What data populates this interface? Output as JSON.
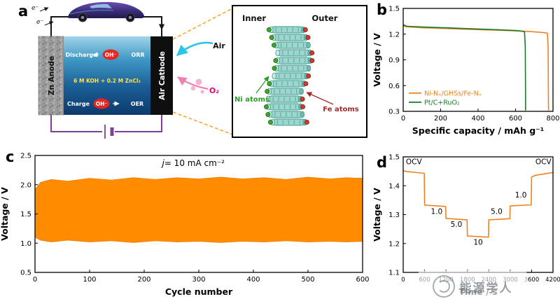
{
  "panel_labels": {
    "a": "a",
    "b": "b",
    "c": "c",
    "d": "d"
  },
  "watermark": {
    "text": "能源学人"
  },
  "panel_a": {
    "electron": "e⁻",
    "anode": "Zn Anode",
    "cathode": "Air Cathode",
    "discharge": "Discharge",
    "orr": "ORR",
    "charge": "Charge",
    "oer": "OER",
    "oh": "OH⁻",
    "electrolyte": "6 M KOH + 0.2 M ZnCl₂",
    "air": "Air",
    "o2": "O₂",
    "inset": {
      "inner": "Inner",
      "outer": "Outer",
      "ni": "Ni atoms",
      "fe": "Fe atoms"
    }
  },
  "chart_data": [
    {
      "panel": "b",
      "type": "line",
      "title": "",
      "xlabel": "Specific capacity / mAh g⁻¹",
      "ylabel": "Voltage / V",
      "xlim": [
        0,
        800
      ],
      "ylim": [
        0.3,
        1.5
      ],
      "xticks": [
        0,
        200,
        400,
        600,
        800
      ],
      "xtick_labels": [
        "0",
        "200",
        "400",
        "600",
        "800"
      ],
      "yticks": [
        0.3,
        0.6,
        0.9,
        1.2,
        1.5
      ],
      "ytick_labels": [
        "0.3",
        "0.6",
        "0.9",
        "1.2",
        "1.5"
      ],
      "legend": [
        {
          "label": "Ni-Nₓ/GHSs/Fe-Nₓ",
          "color": "#f0821e"
        },
        {
          "label": "Pt/C+RuO₂",
          "color": "#1d7a2c"
        }
      ],
      "series": [
        {
          "name": "Ni-Nx-GHSs-Fe-Nx",
          "color": "#f0821e",
          "points": [
            [
              0,
              1.295
            ],
            [
              20,
              1.285
            ],
            [
              100,
              1.275
            ],
            [
              200,
              1.268
            ],
            [
              300,
              1.26
            ],
            [
              400,
              1.253
            ],
            [
              500,
              1.246
            ],
            [
              600,
              1.238
            ],
            [
              680,
              1.23
            ],
            [
              730,
              1.222
            ],
            [
              762,
              1.215
            ],
            [
              770,
              1.21
            ],
            [
              774,
              1.05
            ],
            [
              776,
              0.31
            ]
          ]
        },
        {
          "name": "PtC-RuO2",
          "color": "#1d7a2c",
          "points": [
            [
              0,
              1.31
            ],
            [
              20,
              1.292
            ],
            [
              100,
              1.283
            ],
            [
              200,
              1.276
            ],
            [
              300,
              1.268
            ],
            [
              400,
              1.26
            ],
            [
              500,
              1.252
            ],
            [
              600,
              1.242
            ],
            [
              630,
              1.236
            ],
            [
              648,
              1.228
            ],
            [
              652,
              1.05
            ],
            [
              654,
              0.31
            ]
          ]
        }
      ]
    },
    {
      "panel": "c",
      "type": "band",
      "title": "",
      "xlabel": "Cycle number",
      "ylabel": "Voltage / V",
      "xlim": [
        0,
        600
      ],
      "ylim": [
        0.5,
        2.5
      ],
      "xticks": [
        0,
        100,
        200,
        300,
        400,
        500,
        600
      ],
      "xtick_labels": [
        "0",
        "100",
        "200",
        "300",
        "400",
        "500",
        "600"
      ],
      "yticks": [
        0.5,
        1.0,
        1.5,
        2.0,
        2.5
      ],
      "ytick_labels": [
        "0.5",
        "1.0",
        "1.5",
        "2.0",
        "2.5"
      ],
      "annotation": {
        "x": 290,
        "y": 2.32,
        "fs": 12,
        "parts": [
          {
            "t": "j",
            "italic": true
          },
          {
            "t": "= 10 mA cm⁻²"
          }
        ]
      },
      "band": {
        "color": "#ff8c00",
        "charge_voltage_approx": 2.1,
        "discharge_voltage_approx": 1.03,
        "x": [
          0,
          10,
          30,
          60,
          100,
          140,
          180,
          220,
          260,
          300,
          340,
          380,
          420,
          460,
          500,
          540,
          570,
          600
        ],
        "top": [
          1.92,
          2.04,
          2.09,
          2.06,
          2.11,
          2.08,
          2.12,
          2.09,
          2.12,
          2.1,
          2.13,
          2.1,
          2.12,
          2.09,
          2.13,
          2.1,
          2.12,
          2.11
        ],
        "bottom": [
          1.1,
          1.05,
          1.02,
          1.05,
          1.02,
          1.04,
          1.01,
          1.04,
          1.02,
          1.03,
          1.01,
          1.03,
          1.02,
          1.04,
          1.02,
          1.03,
          1.02,
          1.03
        ]
      }
    },
    {
      "panel": "d",
      "type": "line",
      "title": "",
      "xlabel": "Time / s",
      "ylabel": "Voltage / V",
      "xlim": [
        0,
        4200
      ],
      "ylim": [
        1.1,
        1.5
      ],
      "xticks": [
        0,
        600,
        1200,
        1800,
        2400,
        3000,
        3600,
        4200
      ],
      "xtick_labels": [
        "0",
        "600",
        "1200",
        "1800",
        "2400",
        "3000",
        "3600",
        "4200"
      ],
      "yticks": [
        1.1,
        1.2,
        1.3,
        1.4,
        1.5
      ],
      "ytick_labels": [
        "1.1",
        "1.2",
        "1.3",
        "1.4",
        "1.5"
      ],
      "series": [
        {
          "name": "rate-steps",
          "color": "#f0821e",
          "points": [
            [
              0,
              1.452
            ],
            [
              100,
              1.449
            ],
            [
              590,
              1.443
            ],
            [
              600,
              1.333
            ],
            [
              1190,
              1.328
            ],
            [
              1200,
              1.287
            ],
            [
              1790,
              1.282
            ],
            [
              1800,
              1.226
            ],
            [
              2390,
              1.222
            ],
            [
              2400,
              1.282
            ],
            [
              2990,
              1.286
            ],
            [
              3000,
              1.33
            ],
            [
              3590,
              1.334
            ],
            [
              3600,
              1.43
            ],
            [
              3700,
              1.436
            ],
            [
              4200,
              1.446
            ]
          ]
        }
      ],
      "annotations": [
        {
          "x": 300,
          "y": 1.474,
          "text": "OCV"
        },
        {
          "x": 940,
          "y": 1.303,
          "text": "1.0"
        },
        {
          "x": 1490,
          "y": 1.257,
          "text": "5.0"
        },
        {
          "x": 2100,
          "y": 1.196,
          "text": "10"
        },
        {
          "x": 2620,
          "y": 1.303,
          "text": "5.0"
        },
        {
          "x": 3300,
          "y": 1.36,
          "text": "1.0"
        },
        {
          "x": 3930,
          "y": 1.474,
          "text": "OCV"
        }
      ]
    }
  ]
}
